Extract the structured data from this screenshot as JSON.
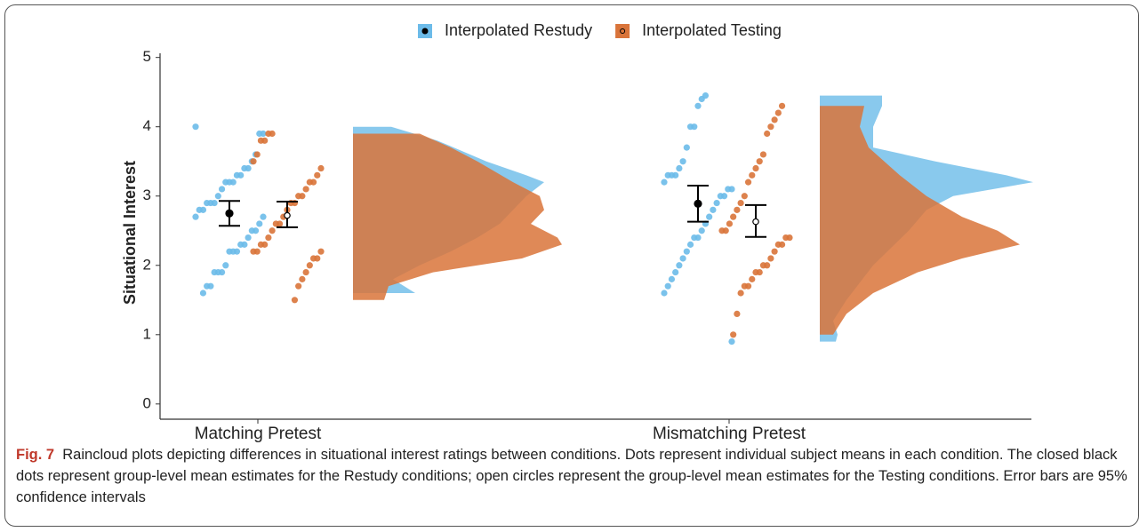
{
  "chart_data": {
    "type": "raincloud",
    "ylabel": "Situational Interest",
    "categories": [
      "Matching Pretest",
      "Mismatching Pretest"
    ],
    "ylim": [
      -0.22,
      5.06
    ],
    "yticks": [
      0,
      1,
      2,
      3,
      4,
      5
    ],
    "legend": "top",
    "series": [
      {
        "name": "Interpolated Restudy",
        "color": "#6cbbe9",
        "mean_marker": "closed",
        "points": [
          [
            4.0,
            3.9,
            3.9,
            3.6,
            3.5,
            3.4,
            3.4,
            3.3,
            3.3,
            3.2,
            3.2,
            3.2,
            3.1,
            3.0,
            2.9,
            2.9,
            2.9,
            2.8,
            2.8,
            2.7,
            2.7,
            2.6,
            2.5,
            2.5,
            2.4,
            2.3,
            2.3,
            2.2,
            2.2,
            2.2,
            2.0,
            1.9,
            1.9,
            1.9,
            1.7,
            1.7,
            1.6
          ],
          [
            4.45,
            4.4,
            4.3,
            4.0,
            4.0,
            3.7,
            3.5,
            3.4,
            3.3,
            3.3,
            3.3,
            3.2,
            3.1,
            3.1,
            3.0,
            3.0,
            2.9,
            2.8,
            2.7,
            2.6,
            2.5,
            2.4,
            2.4,
            2.3,
            2.2,
            2.1,
            2.0,
            1.9,
            1.8,
            1.7,
            1.6,
            0.9
          ]
        ],
        "mean": [
          2.75,
          2.89
        ],
        "ci_low": [
          2.57,
          2.63
        ],
        "ci_high": [
          2.93,
          3.15
        ],
        "density_y": [
          [
            4.0,
            3.8,
            3.5,
            3.3,
            3.2,
            3.0,
            2.8,
            2.6,
            2.4,
            2.2,
            2.0,
            1.8,
            1.6
          ],
          [
            4.45,
            4.3,
            4.0,
            3.7,
            3.5,
            3.3,
            3.2,
            3.0,
            2.8,
            2.5,
            2.0,
            1.5,
            1.2,
            1.0,
            0.9
          ]
        ],
        "density": [
          [
            0.43,
            0.95,
            1.5,
            1.95,
            2.15,
            1.95,
            1.8,
            1.65,
            1.4,
            1.1,
            0.75,
            0.45,
            0.7
          ],
          [
            0.7,
            0.7,
            0.6,
            0.6,
            1.3,
            2.1,
            2.4,
            1.5,
            1.2,
            1.0,
            0.6,
            0.3,
            0.15,
            0.2,
            0.18
          ]
        ]
      },
      {
        "name": "Interpolated Testing",
        "color": "#d9743a",
        "mean_marker": "open",
        "points": [
          [
            3.9,
            3.9,
            3.8,
            3.8,
            3.6,
            3.5,
            3.4,
            3.3,
            3.2,
            3.2,
            3.1,
            3.0,
            3.0,
            2.9,
            2.9,
            2.8,
            2.7,
            2.6,
            2.6,
            2.5,
            2.4,
            2.3,
            2.3,
            2.2,
            2.2,
            2.2,
            2.1,
            2.1,
            2.0,
            1.9,
            1.8,
            1.7,
            1.5
          ],
          [
            4.3,
            4.2,
            4.1,
            4.0,
            3.9,
            3.6,
            3.5,
            3.4,
            3.3,
            3.2,
            3.0,
            2.9,
            2.8,
            2.7,
            2.6,
            2.5,
            2.5,
            2.4,
            2.4,
            2.3,
            2.3,
            2.2,
            2.1,
            2.0,
            2.0,
            1.9,
            1.9,
            1.8,
            1.7,
            1.7,
            1.6,
            1.3,
            1.0
          ]
        ],
        "mean": [
          2.72,
          2.63
        ],
        "ci_low": [
          2.55,
          2.41
        ],
        "ci_high": [
          2.92,
          2.87
        ],
        "density_y": [
          [
            3.9,
            3.7,
            3.5,
            3.2,
            3.0,
            2.8,
            2.6,
            2.4,
            2.3,
            2.1,
            1.9,
            1.7,
            1.5
          ],
          [
            4.3,
            4.0,
            3.7,
            3.3,
            3.0,
            2.7,
            2.5,
            2.3,
            2.1,
            1.9,
            1.6,
            1.3,
            1.0
          ]
        ],
        "density": [
          [
            0.75,
            1.1,
            1.4,
            1.8,
            2.1,
            2.15,
            2.0,
            2.3,
            2.35,
            1.9,
            0.9,
            0.4,
            0.35
          ],
          [
            0.5,
            0.45,
            0.55,
            0.9,
            1.2,
            1.6,
            2.0,
            2.25,
            1.6,
            1.1,
            0.6,
            0.3,
            0.15
          ]
        ]
      }
    ]
  },
  "caption": {
    "label": "Fig. 7",
    "text": "Raincloud plots depicting differences in situational interest ratings between conditions. Dots represent individual subject means in each condition. The closed black dots represent group-level mean estimates for the Restudy conditions; open circles represent the group-level mean estimates for the Testing conditions. Error bars are 95% confidence intervals"
  }
}
